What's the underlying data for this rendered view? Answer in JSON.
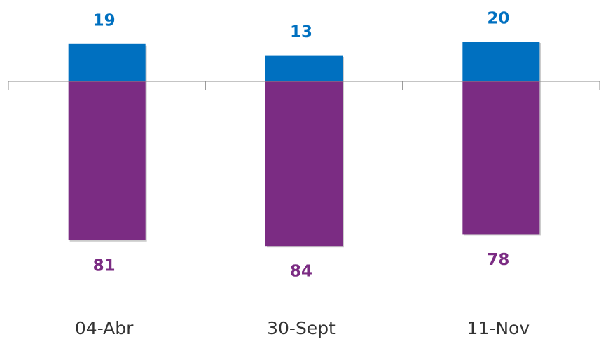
{
  "chart_data": {
    "type": "diverging-bar",
    "categories": [
      "04-Abr",
      "30-Sept",
      "11-Nov"
    ],
    "series": [
      {
        "color": "#0070c0",
        "values": [
          19,
          13,
          20
        ]
      },
      {
        "color": "#7b2c83",
        "values": [
          -81,
          -84,
          -78
        ],
        "value_labels": [
          "81",
          "84",
          "78"
        ]
      }
    ],
    "ylim": [
      -90,
      40
    ]
  }
}
